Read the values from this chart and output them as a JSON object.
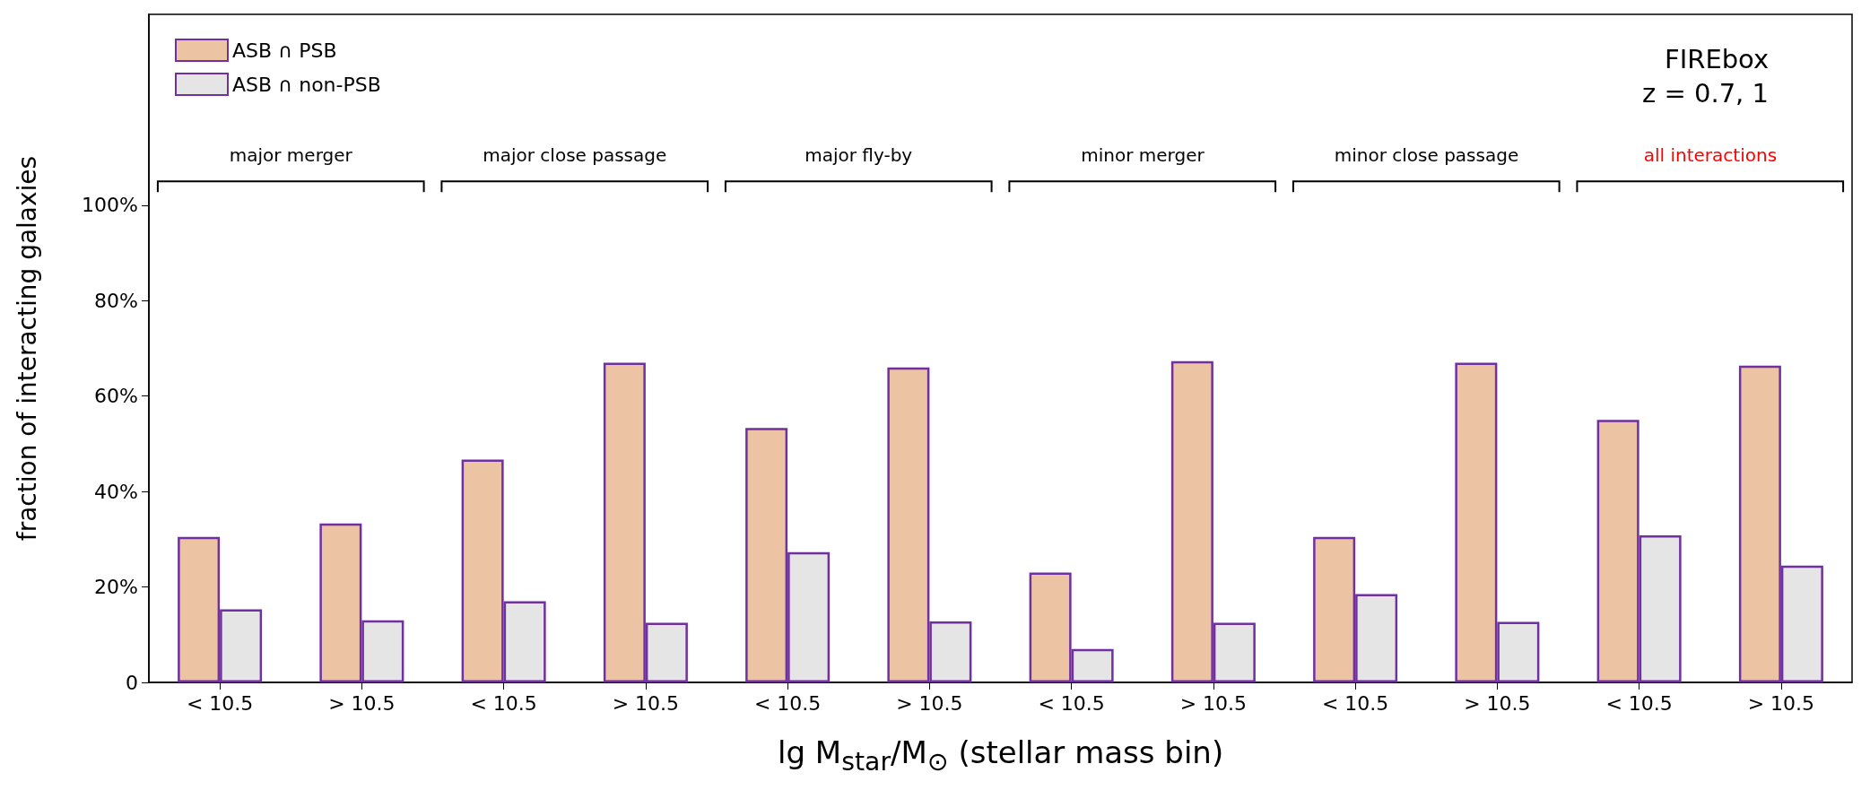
{
  "chart_data": {
    "type": "bar",
    "categories": [
      "< 10.5",
      "> 10.5",
      "< 10.5",
      "> 10.5",
      "< 10.5",
      "> 10.5",
      "< 10.5",
      "> 10.5",
      "< 10.5",
      "> 10.5",
      "< 10.5",
      "> 10.5"
    ],
    "series": [
      {
        "name": "ASB ∩ PSB",
        "color": "#ecc4a4",
        "values": [
          30.5,
          33.3,
          46.7,
          67,
          53.3,
          66,
          23,
          67.3,
          30.5,
          67,
          55,
          66.4
        ]
      },
      {
        "name": "ASB ∩ non-PSB",
        "color": "#e5e5e5",
        "values": [
          15.3,
          13,
          17,
          12.5,
          27.3,
          12.8,
          7,
          12.5,
          18.5,
          12.7,
          30.8,
          24.5
        ]
      }
    ],
    "ylabel": "fraction of interacting galaxies",
    "xlabel": "lg M$_{star}$/M$_{⊙}$  (stellar mass bin)",
    "ylim": [
      0,
      140
    ],
    "yticks": [
      0,
      {
        "value": 20,
        "label": "20%"
      },
      {
        "value": 40,
        "label": "40%"
      },
      {
        "value": 60,
        "label": "60%"
      },
      {
        "value": 80,
        "label": "80%"
      },
      {
        "value": 100,
        "label": "100%"
      }
    ],
    "annotations": [
      "major merger",
      "major close passage",
      "major fly-by",
      "minor merger",
      "minor close passage",
      "all interactions",
      "FIREbox",
      "z = 0.7, 1"
    ],
    "legend": "top left",
    "grid": false
  }
}
